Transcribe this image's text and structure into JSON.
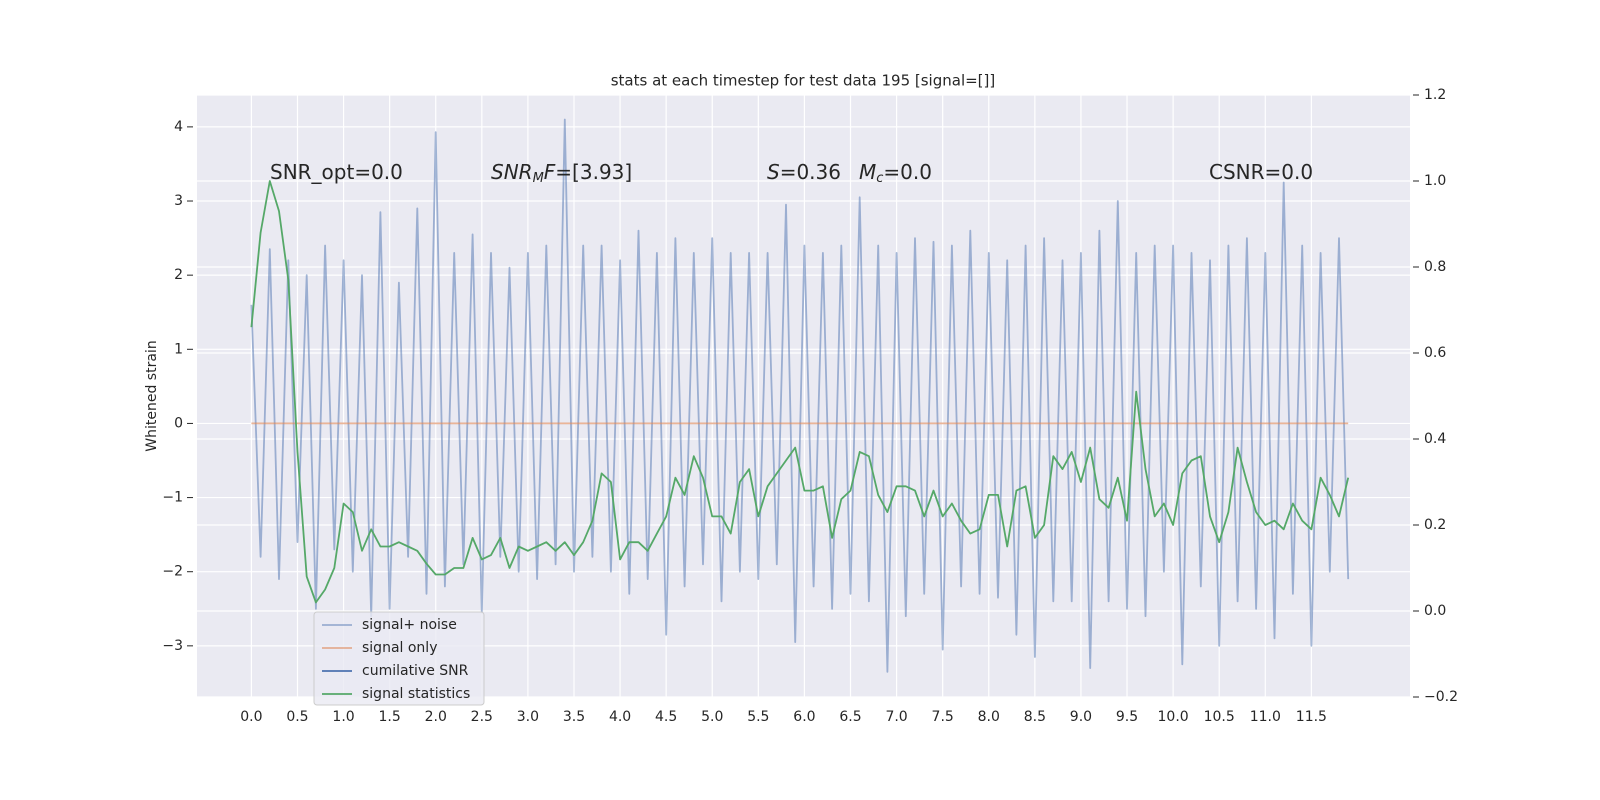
{
  "chart_data": {
    "type": "line",
    "title": "stats at each timestep for test data 195 [signal=[]]",
    "ylabel": "Whitened strain",
    "grid": true,
    "legend": "lower left",
    "xlim": [
      -0.59,
      12.57
    ],
    "ylim": [
      -3.69,
      4.43
    ],
    "y2lim": [
      -0.2,
      1.2
    ],
    "xticks": [
      {
        "value": 0,
        "label": "0.0"
      },
      0.5,
      {
        "value": 1,
        "label": "1.0"
      },
      1.5,
      {
        "value": 2,
        "label": "2.0"
      },
      2.5,
      {
        "value": 3,
        "label": "3.0"
      },
      3.5,
      {
        "value": 4,
        "label": "4.0"
      },
      4.5,
      {
        "value": 5,
        "label": "5.0"
      },
      5.5,
      {
        "value": 6,
        "label": "6.0"
      },
      6.5,
      {
        "value": 7,
        "label": "7.0"
      },
      7.5,
      {
        "value": 8,
        "label": "8.0"
      },
      8.5,
      {
        "value": 9,
        "label": "9.0"
      },
      9.5,
      {
        "value": 10,
        "label": "10.0"
      },
      10.5,
      {
        "value": 11,
        "label": "11.0"
      },
      11.5
    ],
    "yticks": [
      {
        "value": -3,
        "label": "−3"
      },
      {
        "value": -2,
        "label": "−2"
      },
      {
        "value": -1,
        "label": "−1"
      },
      0,
      1,
      2,
      3,
      4
    ],
    "y2ticks": [
      {
        "value": -0.2,
        "label": "−0.2"
      },
      {
        "value": 0,
        "label": "0.0"
      },
      0.2,
      0.4,
      0.6,
      0.8,
      {
        "value": 1,
        "label": "1.0"
      },
      1.2
    ],
    "annotations": [
      {
        "segments": [
          {
            "t": "SNR_opt=0.0"
          }
        ]
      },
      {
        "segments": [
          {
            "t": "SNR",
            "style": "italic"
          },
          {
            "t": "M",
            "style": "sub"
          },
          {
            "t": "F",
            "style": "italic"
          },
          {
            "t": "=[3.93]"
          }
        ]
      },
      {
        "segments": [
          {
            "t": "S",
            "style": "italic"
          },
          {
            "t": "=0.36"
          }
        ]
      },
      {
        "segments": [
          {
            "t": "M",
            "style": "italic"
          },
          {
            "t": "c",
            "style": "sub"
          },
          {
            "t": "=0.0"
          }
        ]
      },
      {
        "segments": [
          {
            "t": "CSNR=0.0"
          }
        ]
      }
    ],
    "x": [
      0,
      0.1,
      0.2,
      0.3,
      0.4,
      0.5,
      0.6,
      0.7,
      0.8,
      0.9,
      1,
      1.1,
      1.2,
      1.3,
      1.4,
      1.5,
      1.6,
      1.7,
      1.8,
      1.9,
      2,
      2.1,
      2.2,
      2.3,
      2.4,
      2.5,
      2.6,
      2.7,
      2.8,
      2.9,
      3,
      3.1,
      3.2,
      3.3,
      3.4,
      3.5,
      3.6,
      3.7,
      3.8,
      3.9,
      4,
      4.1,
      4.2,
      4.3,
      4.4,
      4.5,
      4.6,
      4.7,
      4.8,
      4.9,
      5,
      5.1,
      5.2,
      5.3,
      5.4,
      5.5,
      5.6,
      5.7,
      5.8,
      5.9,
      6,
      6.1,
      6.2,
      6.3,
      6.4,
      6.5,
      6.6,
      6.7,
      6.8,
      6.9,
      7,
      7.1,
      7.2,
      7.3,
      7.4,
      7.5,
      7.6,
      7.7,
      7.8,
      7.9,
      8,
      8.1,
      8.2,
      8.3,
      8.4,
      8.5,
      8.6,
      8.7,
      8.8,
      8.9,
      9,
      9.1,
      9.2,
      9.3,
      9.4,
      9.5,
      9.6,
      9.7,
      9.8,
      9.9,
      10,
      10.1,
      10.2,
      10.3,
      10.4,
      10.5,
      10.6,
      10.7,
      10.8,
      10.9,
      11,
      11.1,
      11.2,
      11.3,
      11.4,
      11.5,
      11.6,
      11.7,
      11.8,
      11.9
    ],
    "series": [
      {
        "name": "signal+ noise",
        "color": "#4c72b0",
        "alpha": 0.5,
        "values": [
          1.6,
          -1.8,
          2.35,
          -2.1,
          2.2,
          -1.6,
          2.0,
          -2.5,
          2.4,
          -1.7,
          2.2,
          -2.0,
          2.0,
          -2.6,
          2.85,
          -2.5,
          1.9,
          -1.8,
          2.9,
          -2.3,
          3.93,
          -2.2,
          2.3,
          -1.9,
          2.55,
          -2.55,
          2.3,
          -1.8,
          2.1,
          -2.0,
          2.3,
          -2.1,
          2.4,
          -1.9,
          4.1,
          -2.0,
          2.4,
          -1.8,
          2.4,
          -2.0,
          2.2,
          -2.3,
          2.6,
          -2.1,
          2.3,
          -2.85,
          2.5,
          -2.2,
          2.3,
          -1.9,
          2.5,
          -2.4,
          2.3,
          -2.0,
          2.3,
          -2.1,
          2.3,
          -1.9,
          2.95,
          -2.95,
          2.4,
          -2.2,
          2.3,
          -2.5,
          2.4,
          -2.3,
          3.05,
          -2.4,
          2.4,
          -3.35,
          2.3,
          -2.6,
          2.5,
          -2.3,
          2.45,
          -3.05,
          2.4,
          -2.2,
          2.6,
          -2.3,
          2.3,
          -2.35,
          2.2,
          -2.85,
          2.4,
          -3.15,
          2.5,
          -2.4,
          2.2,
          -2.4,
          2.3,
          -3.3,
          2.6,
          -2.4,
          3.0,
          -2.5,
          2.3,
          -2.6,
          2.4,
          -2.0,
          2.4,
          -3.25,
          2.3,
          -2.2,
          2.2,
          -3.0,
          2.4,
          -2.4,
          2.5,
          -2.5,
          2.3,
          -2.9,
          3.25,
          -2.3,
          2.4,
          -3.0,
          2.3,
          -2.0,
          2.5,
          -2.1
        ]
      },
      {
        "name": "signal only",
        "color": "#dd8452",
        "alpha": 0.6,
        "values": [
          0,
          0,
          0,
          0,
          0,
          0,
          0,
          0,
          0,
          0,
          0,
          0,
          0,
          0,
          0,
          0,
          0,
          0,
          0,
          0,
          0,
          0,
          0,
          0,
          0,
          0,
          0,
          0,
          0,
          0,
          0,
          0,
          0,
          0,
          0,
          0,
          0,
          0,
          0,
          0,
          0,
          0,
          0,
          0,
          0,
          0,
          0,
          0,
          0,
          0,
          0,
          0,
          0,
          0,
          0,
          0,
          0,
          0,
          0,
          0,
          0,
          0,
          0,
          0,
          0,
          0,
          0,
          0,
          0,
          0,
          0,
          0,
          0,
          0,
          0,
          0,
          0,
          0,
          0,
          0,
          0,
          0,
          0,
          0,
          0,
          0,
          0,
          0,
          0,
          0,
          0,
          0,
          0,
          0,
          0,
          0,
          0,
          0,
          0,
          0,
          0,
          0,
          0,
          0,
          0,
          0,
          0,
          0,
          0,
          0,
          0,
          0,
          0,
          0,
          0,
          0,
          0,
          0,
          0,
          0
        ]
      },
      {
        "name": "cumilative SNR",
        "color": "#4c72b0",
        "alpha": 1
      },
      {
        "name": "signal statistics",
        "color": "#55a868",
        "alpha": 1,
        "axis": "y2",
        "values": [
          0.66,
          0.88,
          1.0,
          0.93,
          0.77,
          0.37,
          0.08,
          0.02,
          0.05,
          0.1,
          0.25,
          0.23,
          0.14,
          0.19,
          0.15,
          0.15,
          0.16,
          0.15,
          0.14,
          0.11,
          0.085,
          0.085,
          0.1,
          0.1,
          0.17,
          0.12,
          0.13,
          0.17,
          0.1,
          0.15,
          0.14,
          0.15,
          0.16,
          0.14,
          0.16,
          0.13,
          0.16,
          0.21,
          0.32,
          0.3,
          0.12,
          0.16,
          0.16,
          0.14,
          0.18,
          0.22,
          0.31,
          0.27,
          0.36,
          0.31,
          0.22,
          0.22,
          0.18,
          0.3,
          0.33,
          0.22,
          0.29,
          0.32,
          0.35,
          0.38,
          0.28,
          0.28,
          0.29,
          0.17,
          0.26,
          0.28,
          0.37,
          0.36,
          0.27,
          0.23,
          0.29,
          0.29,
          0.28,
          0.22,
          0.28,
          0.22,
          0.25,
          0.21,
          0.18,
          0.19,
          0.27,
          0.27,
          0.15,
          0.28,
          0.29,
          0.17,
          0.2,
          0.36,
          0.33,
          0.37,
          0.3,
          0.38,
          0.26,
          0.24,
          0.31,
          0.21,
          0.51,
          0.33,
          0.22,
          0.25,
          0.2,
          0.32,
          0.35,
          0.36,
          0.22,
          0.16,
          0.23,
          0.38,
          0.3,
          0.23,
          0.2,
          0.21,
          0.19,
          0.25,
          0.21,
          0.19,
          0.31,
          0.27,
          0.22,
          0.31
        ]
      }
    ]
  }
}
